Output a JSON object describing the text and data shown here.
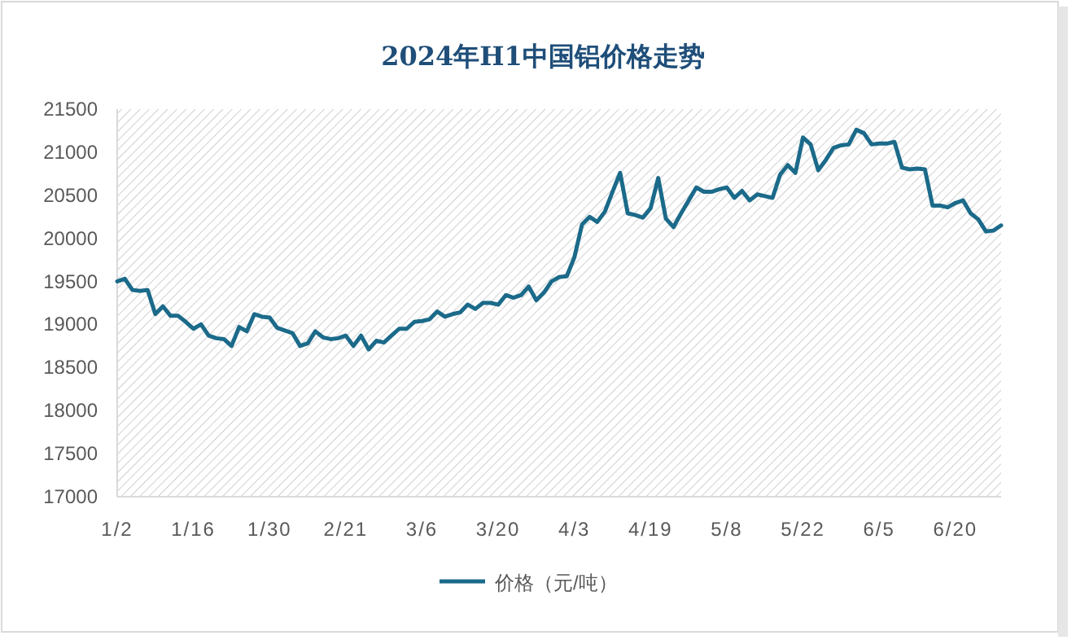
{
  "chart_data": {
    "type": "line",
    "title": "2024年H1中国铝价格走势",
    "categories": [
      "1/2",
      null,
      null,
      null,
      null,
      null,
      null,
      null,
      null,
      null,
      "1/16",
      null,
      null,
      null,
      null,
      null,
      null,
      null,
      null,
      null,
      "1/30",
      null,
      null,
      null,
      null,
      null,
      null,
      null,
      null,
      null,
      "2/21",
      null,
      null,
      null,
      null,
      null,
      null,
      null,
      null,
      null,
      "3/6",
      null,
      null,
      null,
      null,
      null,
      null,
      null,
      null,
      null,
      "3/20",
      null,
      null,
      null,
      null,
      null,
      null,
      null,
      null,
      null,
      "4/3",
      null,
      null,
      null,
      null,
      null,
      null,
      null,
      null,
      null,
      "4/19",
      null,
      null,
      null,
      null,
      null,
      null,
      null,
      null,
      null,
      "5/8",
      null,
      null,
      null,
      null,
      null,
      null,
      null,
      null,
      null,
      "5/22",
      null,
      null,
      null,
      null,
      null,
      null,
      null,
      null,
      null,
      "6/5",
      null,
      null,
      null,
      null,
      null,
      null,
      null,
      null,
      null,
      "6/20",
      null,
      null,
      null,
      null,
      null,
      null
    ],
    "series": [
      {
        "name": "价格（元/吨）",
        "color": "#1b6a8a",
        "values": [
          19500,
          19530,
          19400,
          19390,
          19400,
          19120,
          19210,
          19100,
          19100,
          19030,
          18950,
          19000,
          18870,
          18840,
          18830,
          18750,
          18970,
          18920,
          19120,
          19090,
          19080,
          18960,
          18930,
          18900,
          18750,
          18780,
          18920,
          18850,
          18830,
          18840,
          18870,
          18750,
          18870,
          18710,
          18810,
          18790,
          18870,
          18950,
          18950,
          19030,
          19040,
          19060,
          19150,
          19090,
          19120,
          19140,
          19230,
          19180,
          19250,
          19250,
          19230,
          19340,
          19310,
          19340,
          19440,
          19280,
          19370,
          19500,
          19550,
          19560,
          19780,
          20160,
          20250,
          20190,
          20310,
          20540,
          20760,
          20290,
          20270,
          20240,
          20350,
          20700,
          20230,
          20130,
          20290,
          20440,
          20590,
          20540,
          20540,
          20570,
          20590,
          20470,
          20550,
          20440,
          20510,
          20490,
          20470,
          20740,
          20850,
          20760,
          21170,
          21090,
          20790,
          20910,
          21050,
          21080,
          21090,
          21260,
          21220,
          21090,
          21100,
          21100,
          21120,
          20820,
          20800,
          20810,
          20800,
          20380,
          20380,
          20360,
          20410,
          20440,
          20290,
          20220,
          20080,
          20090,
          20150
        ]
      }
    ],
    "ylim": [
      17000,
      21500
    ],
    "yticks": [
      17000,
      17500,
      18000,
      18500,
      19000,
      19500,
      20000,
      20500,
      21000,
      21500
    ],
    "grid": false,
    "legend": "bottom",
    "line_style": "solid"
  }
}
